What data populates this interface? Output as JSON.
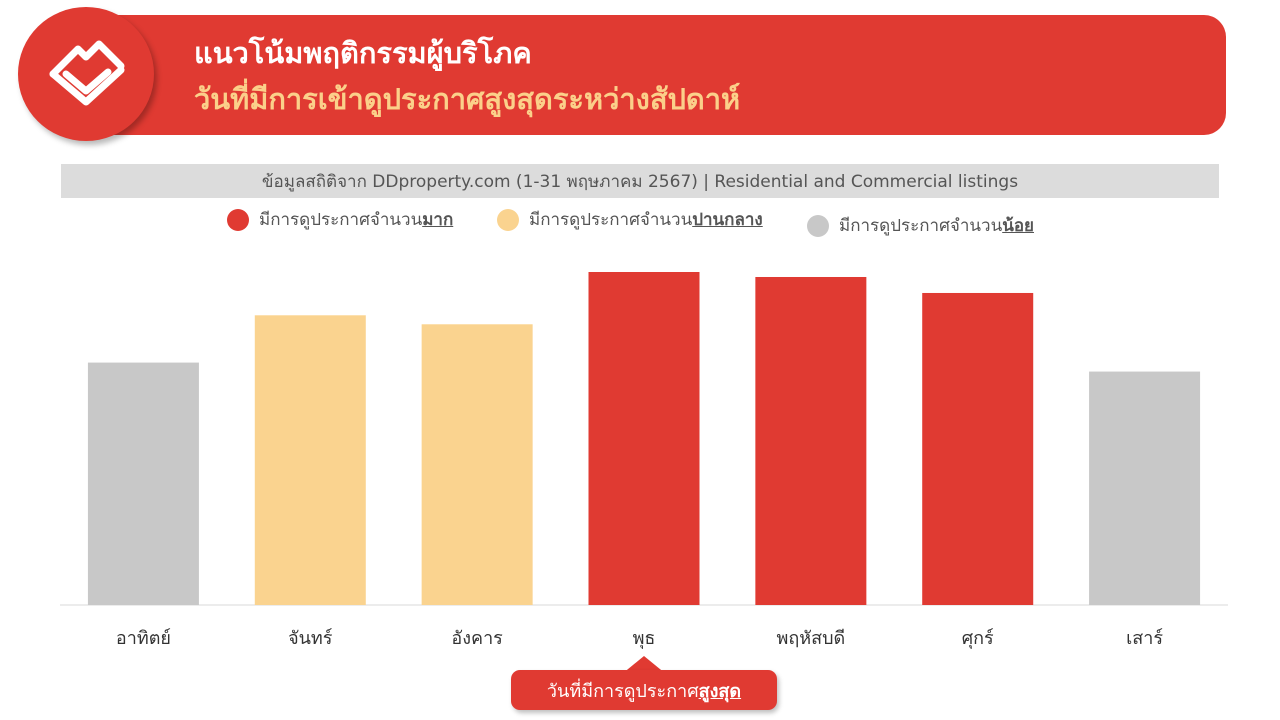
{
  "header": {
    "title_line1": "แนวโน้มพฤติกรรมผู้บริโภค",
    "title_line2": "วันที่มีการเข้าดูประกาศสูงสุดระหว่างสัปดาห์",
    "logo_icon": "house-layers-icon",
    "colors": {
      "bar": "#e03a32",
      "title_line1": "#ffffff",
      "title_line2": "#fbd08a"
    }
  },
  "source_note": "ข้อมูลสถิติจาก DDproperty.com (1-31 พฤษภาคม 2567) | Residential and Commercial listings",
  "legend": [
    {
      "prefix": "มีการดูประกาศจำนวน",
      "emphasis": "มาก",
      "color": "#e03a32"
    },
    {
      "prefix": "มีการดูประกาศจำนวน",
      "emphasis": "ปานกลาง",
      "color": "#fad38f"
    },
    {
      "prefix": "มีการดูประกาศจำนวน",
      "emphasis": "น้อย",
      "color": "#c8c8c8"
    }
  ],
  "callout": {
    "prefix": "วันที่มีการดูประกาศ",
    "emphasis": "สูงสุด",
    "target_category": "พุธ"
  },
  "chart_data": {
    "type": "bar",
    "title": "",
    "xlabel": "",
    "ylabel": "",
    "value_axis_shown": false,
    "values_note": "no axis or data labels; values are relative bar heights estimated as percent of tallest bar",
    "ylim": [
      0,
      100
    ],
    "categories": [
      "อาทิตย์",
      "จันทร์",
      "อังคาร",
      "พุธ",
      "พฤหัสบดี",
      "ศุกร์",
      "เสาร์"
    ],
    "values": [
      72.8,
      87.0,
      84.3,
      100,
      98.5,
      93.7,
      70.1
    ],
    "levels": [
      "น้อย",
      "ปานกลาง",
      "ปานกลาง",
      "มาก",
      "มาก",
      "มาก",
      "น้อย"
    ],
    "colors": [
      "#c8c8c8",
      "#fad38f",
      "#fad38f",
      "#e03a32",
      "#e03a32",
      "#e03a32",
      "#c8c8c8"
    ],
    "grid": false,
    "legend_position": "top"
  }
}
